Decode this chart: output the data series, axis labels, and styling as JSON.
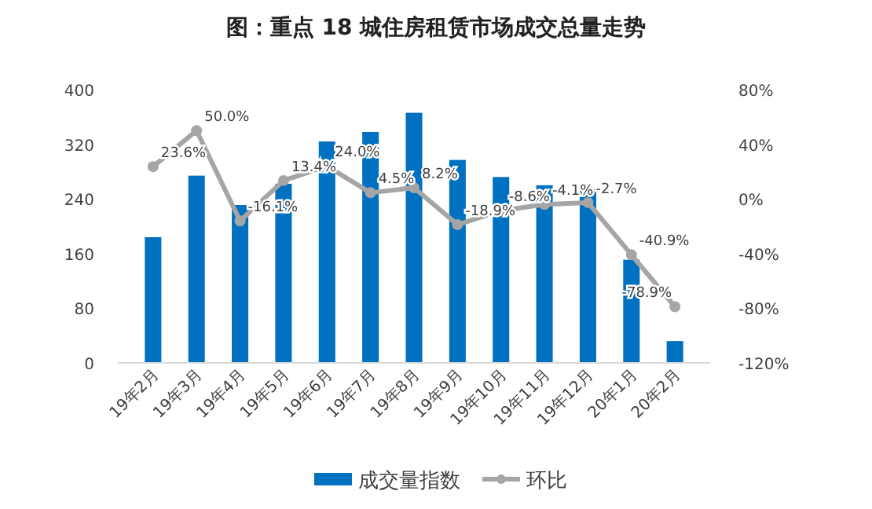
{
  "chart_data": {
    "type": "bar",
    "title": "图：重点 18 城住房租赁市场成交总量走势",
    "categories": [
      "19年2月",
      "19年3月",
      "19年4月",
      "19年5月",
      "19年6月",
      "19年7月",
      "19年8月",
      "19年9月",
      "19年10月",
      "19年11月",
      "19年12月",
      "20年1月",
      "20年2月"
    ],
    "series": [
      {
        "name": "成交量指数",
        "color": "#0070c0",
        "values": [
          184,
          274,
          231,
          262,
          324,
          338,
          366,
          297,
          272,
          260,
          254,
          151,
          32
        ]
      },
      {
        "name": "环比",
        "type": "line",
        "axis": "y2",
        "color": "#a5a5a5",
        "marker": "circle",
        "values": [
          23.6,
          50.0,
          -16.1,
          13.4,
          24.0,
          4.5,
          8.2,
          -18.9,
          -8.6,
          -4.1,
          -2.7,
          -40.9,
          -78.9
        ],
        "value_labels": [
          "23.6%",
          "50.0%",
          "-16.1%",
          "13.4%",
          "24.0%",
          "4.5%",
          "8.2%",
          "-18.9%",
          "-8.6%",
          "-4.1%",
          "-2.7%",
          "-40.9%",
          "-78.9%"
        ]
      }
    ],
    "ylim": [
      0,
      400
    ],
    "yticks": [
      0,
      80,
      160,
      240,
      320,
      400
    ],
    "y2lim": [
      -120,
      80
    ],
    "y2ticks": [
      {
        "value": -120,
        "label": "-120%"
      },
      {
        "value": -80,
        "label": "-80%"
      },
      {
        "value": -40,
        "label": "-40%"
      },
      {
        "value": 0,
        "label": "0%"
      },
      {
        "value": 40,
        "label": "40%"
      },
      {
        "value": 80,
        "label": "80%"
      }
    ],
    "grid": false,
    "legend": "bottom"
  }
}
